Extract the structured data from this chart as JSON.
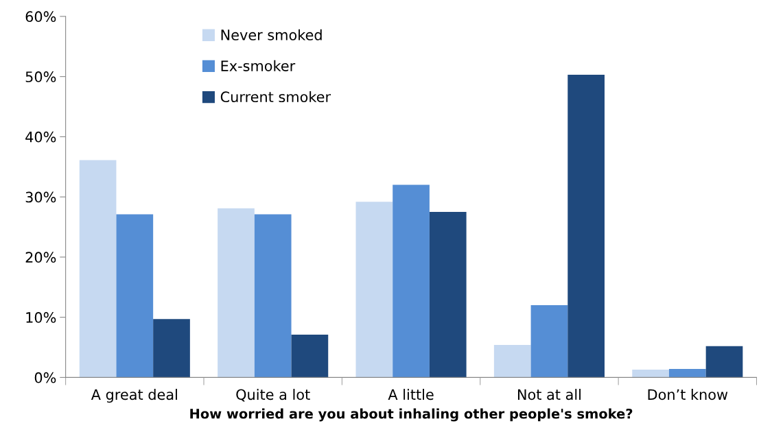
{
  "chart_data": {
    "type": "bar",
    "xlabel": "How worried are you about inhaling other people's smoke?",
    "categories": [
      "A great deal",
      "Quite a lot",
      "A little",
      "Not at all",
      "Don’t know"
    ],
    "series": [
      {
        "name": "Never smoked",
        "color": "#c6d9f1",
        "values": [
          36.1,
          28.1,
          29.2,
          5.4,
          1.3
        ]
      },
      {
        "name": "Ex-smoker",
        "color": "#558ed5",
        "values": [
          27.1,
          27.1,
          32.0,
          12.0,
          1.4
        ]
      },
      {
        "name": "Current smoker",
        "color": "#1f497d",
        "values": [
          9.7,
          7.1,
          27.5,
          50.3,
          5.2
        ]
      }
    ],
    "ylim": [
      0,
      60
    ],
    "yticks": [
      {
        "value": 0,
        "label": "0%"
      },
      {
        "value": 10,
        "label": "10%"
      },
      {
        "value": 20,
        "label": "20%"
      },
      {
        "value": 30,
        "label": "30%"
      },
      {
        "value": 40,
        "label": "40%"
      },
      {
        "value": 50,
        "label": "50%"
      },
      {
        "value": 60,
        "label": "60%"
      }
    ],
    "grid": false,
    "legend": "top"
  }
}
